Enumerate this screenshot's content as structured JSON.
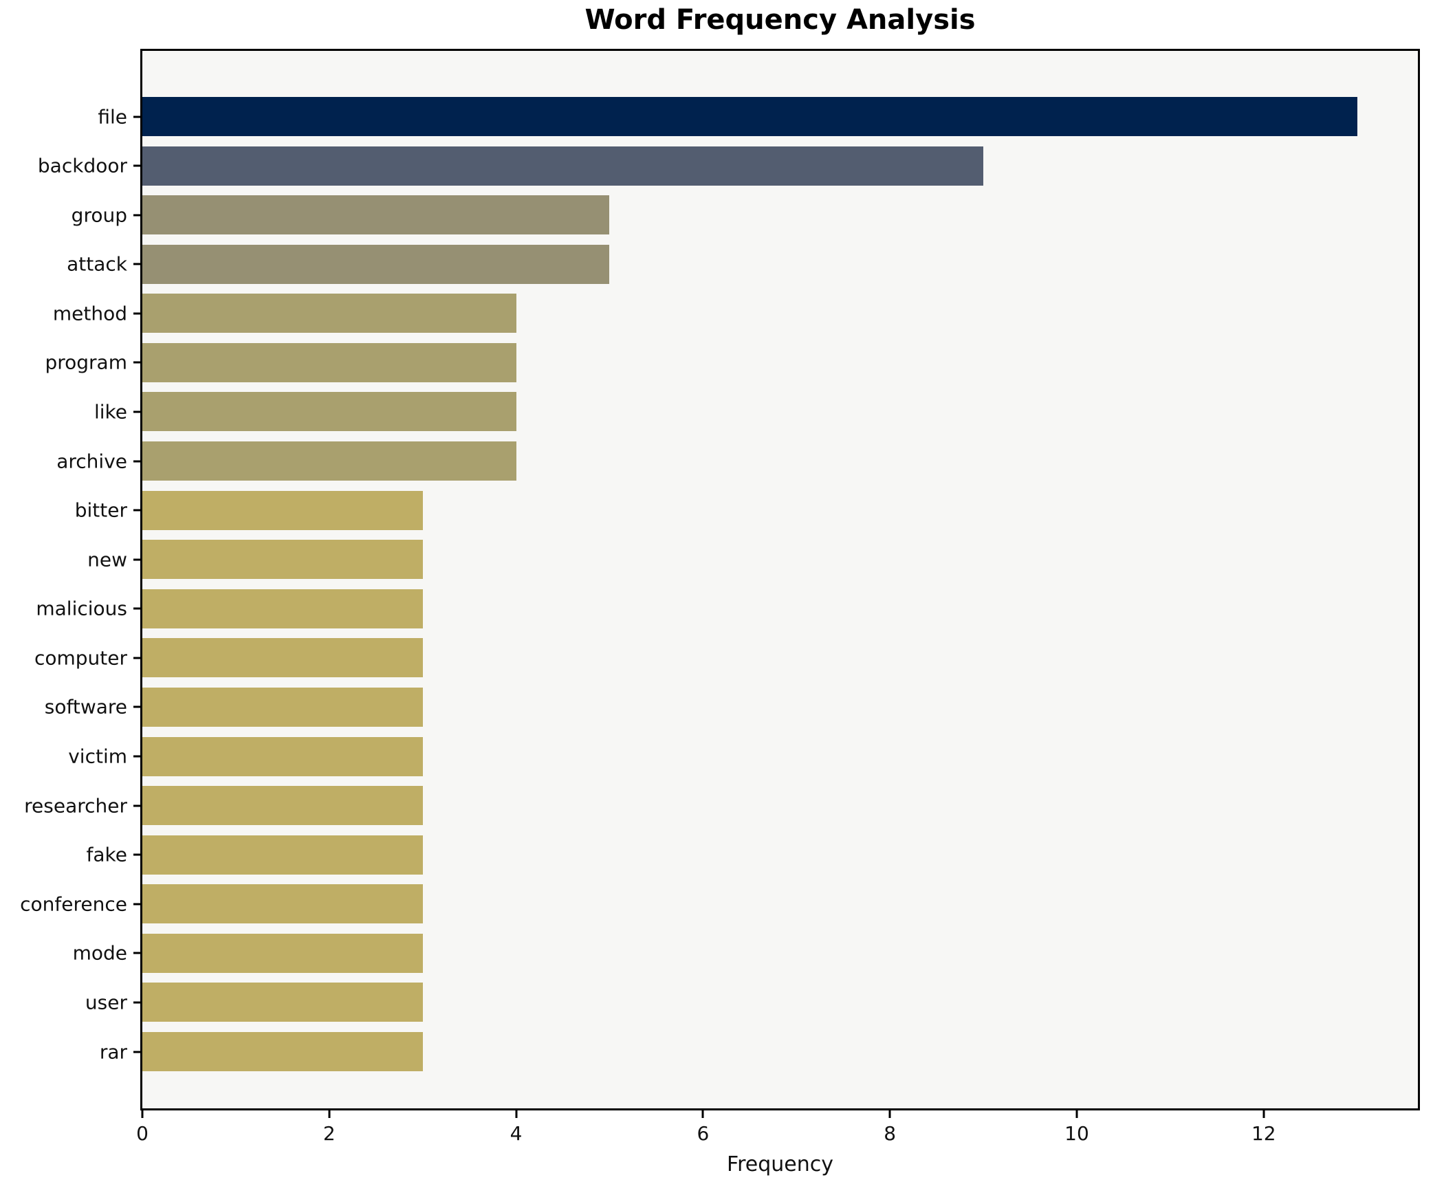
{
  "chart_data": {
    "type": "bar",
    "orientation": "horizontal",
    "title": "Word Frequency Analysis",
    "xlabel": "Frequency",
    "ylabel": "",
    "grid": false,
    "legend": false,
    "plot_background": "#f7f7f5",
    "spine_color": "#000000",
    "categories": [
      "file",
      "backdoor",
      "group",
      "attack",
      "method",
      "program",
      "like",
      "archive",
      "bitter",
      "new",
      "malicious",
      "computer",
      "software",
      "victim",
      "researcher",
      "fake",
      "conference",
      "mode",
      "user",
      "rar"
    ],
    "values": [
      13,
      9,
      5,
      5,
      4,
      4,
      4,
      4,
      3,
      3,
      3,
      3,
      3,
      3,
      3,
      3,
      3,
      3,
      3,
      3
    ],
    "bar_colors": [
      "#00224e",
      "#535d70",
      "#969073",
      "#969073",
      "#a9a06e",
      "#a9a06e",
      "#a9a06e",
      "#a9a06e",
      "#bfae65",
      "#bfae65",
      "#bfae65",
      "#bfae65",
      "#bfae65",
      "#bfae65",
      "#bfae65",
      "#bfae65",
      "#bfae65",
      "#bfae65",
      "#bfae65",
      "#bfae65"
    ],
    "value_color_map": {
      "13": "#00224e",
      "9": "#535d70",
      "5": "#969073",
      "4": "#a9a06e",
      "3": "#bfae65"
    },
    "xticks": [
      0,
      2,
      4,
      6,
      8,
      10,
      12
    ],
    "xlim": [
      0,
      13.65
    ]
  }
}
